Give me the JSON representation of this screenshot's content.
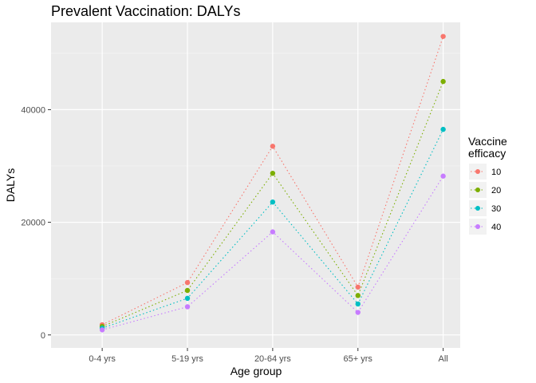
{
  "chart_data": {
    "type": "line",
    "title": "Prevalent Vaccination: DALYs",
    "xlabel": "Age group",
    "ylabel": "DALYs",
    "categories": [
      "0-4 yrs",
      "5-19 yrs",
      "20-64 yrs",
      "65+ yrs",
      "All"
    ],
    "ylim": [
      -2300,
      55500
    ],
    "yticks": [
      0,
      20000,
      40000
    ],
    "ytick_labels": [
      "0",
      "20000",
      "40000"
    ],
    "grid": true,
    "line_style": "dotted",
    "legend": {
      "title_lines": [
        "Vaccine",
        "efficacy"
      ],
      "placement": "right"
    },
    "series": [
      {
        "name": "10",
        "color": "#F8766D",
        "values": [
          1800,
          9300,
          33500,
          8500,
          53000
        ]
      },
      {
        "name": "20",
        "color": "#7CAE00",
        "values": [
          1500,
          7900,
          28700,
          7000,
          45000
        ]
      },
      {
        "name": "30",
        "color": "#00BFC4",
        "values": [
          1200,
          6500,
          23600,
          5500,
          36500
        ]
      },
      {
        "name": "40",
        "color": "#C77CFF",
        "values": [
          900,
          5000,
          18300,
          4000,
          28200
        ]
      }
    ]
  }
}
